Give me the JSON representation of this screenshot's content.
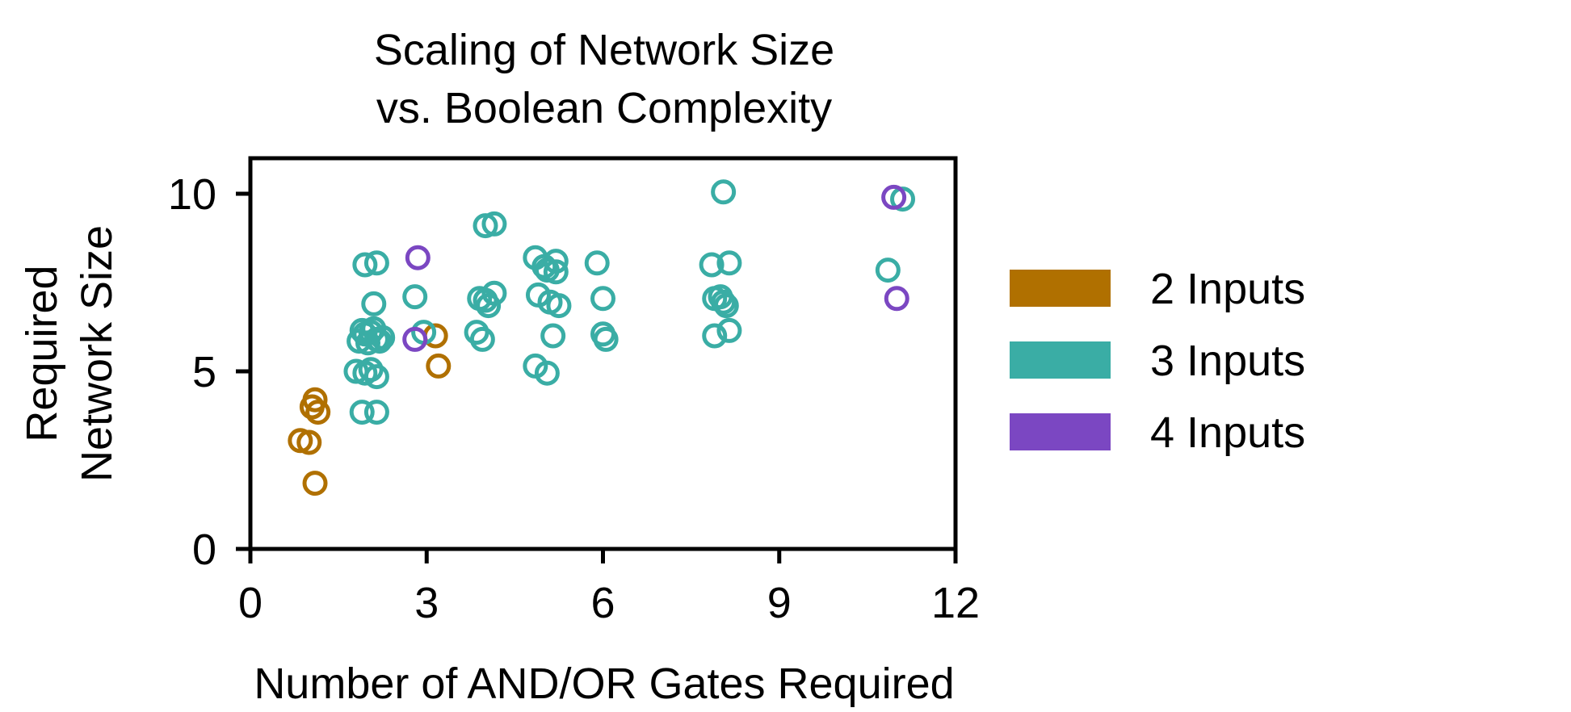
{
  "chart_data": {
    "type": "scatter",
    "title": [
      "Scaling of Network Size",
      "vs. Boolean Complexity"
    ],
    "xlabel": "Number of AND/OR Gates Required",
    "ylabel": [
      "Required",
      "Network Size"
    ],
    "xlim": [
      0,
      12
    ],
    "ylim": [
      0,
      11
    ],
    "xticks": [
      0,
      3,
      6,
      9,
      12
    ],
    "yticks": [
      0,
      5,
      10
    ],
    "grid": false,
    "legend_position": "right",
    "marker": "open-circle",
    "series": [
      {
        "name": "2 Inputs",
        "color": "#B07000",
        "points": [
          [
            0.85,
            3.05
          ],
          [
            1.0,
            3.0
          ],
          [
            1.1,
            4.2
          ],
          [
            1.05,
            4.0
          ],
          [
            1.15,
            3.85
          ],
          [
            1.1,
            1.85
          ],
          [
            3.15,
            6.0
          ],
          [
            3.2,
            5.15
          ]
        ]
      },
      {
        "name": "3 Inputs",
        "color": "#3AADA5",
        "points": [
          [
            1.95,
            8.0
          ],
          [
            2.15,
            8.05
          ],
          [
            2.1,
            6.9
          ],
          [
            1.85,
            5.85
          ],
          [
            1.95,
            6.05
          ],
          [
            2.05,
            6.1
          ],
          [
            2.15,
            5.9
          ],
          [
            2.25,
            5.95
          ],
          [
            1.9,
            6.15
          ],
          [
            2.0,
            5.8
          ],
          [
            2.1,
            6.2
          ],
          [
            2.2,
            5.85
          ],
          [
            1.8,
            5.0
          ],
          [
            1.95,
            4.95
          ],
          [
            2.05,
            5.05
          ],
          [
            2.15,
            4.85
          ],
          [
            1.9,
            3.85
          ],
          [
            2.15,
            3.85
          ],
          [
            2.8,
            7.1
          ],
          [
            2.95,
            6.1
          ],
          [
            3.85,
            6.1
          ],
          [
            3.95,
            5.9
          ],
          [
            3.9,
            7.05
          ],
          [
            4.0,
            7.0
          ],
          [
            4.05,
            6.85
          ],
          [
            4.15,
            7.2
          ],
          [
            4.0,
            9.1
          ],
          [
            4.15,
            9.15
          ],
          [
            4.85,
            8.2
          ],
          [
            4.9,
            7.15
          ],
          [
            5.0,
            7.95
          ],
          [
            5.05,
            7.85
          ],
          [
            5.1,
            6.95
          ],
          [
            5.2,
            8.1
          ],
          [
            5.25,
            6.85
          ],
          [
            5.2,
            7.8
          ],
          [
            4.85,
            5.15
          ],
          [
            5.05,
            4.95
          ],
          [
            5.15,
            6.0
          ],
          [
            5.9,
            8.05
          ],
          [
            6.0,
            7.05
          ],
          [
            6.0,
            6.05
          ],
          [
            6.05,
            5.9
          ],
          [
            7.85,
            8.0
          ],
          [
            7.9,
            7.05
          ],
          [
            8.0,
            7.1
          ],
          [
            8.05,
            6.95
          ],
          [
            8.1,
            6.85
          ],
          [
            8.15,
            8.05
          ],
          [
            7.9,
            6.0
          ],
          [
            8.15,
            6.15
          ],
          [
            8.05,
            10.05
          ],
          [
            10.85,
            7.85
          ],
          [
            11.1,
            9.85
          ]
        ]
      },
      {
        "name": "4 Inputs",
        "color": "#7B47C2",
        "points": [
          [
            2.85,
            8.2
          ],
          [
            2.8,
            5.9
          ],
          [
            10.95,
            9.9
          ],
          [
            11.0,
            7.05
          ]
        ]
      }
    ]
  }
}
